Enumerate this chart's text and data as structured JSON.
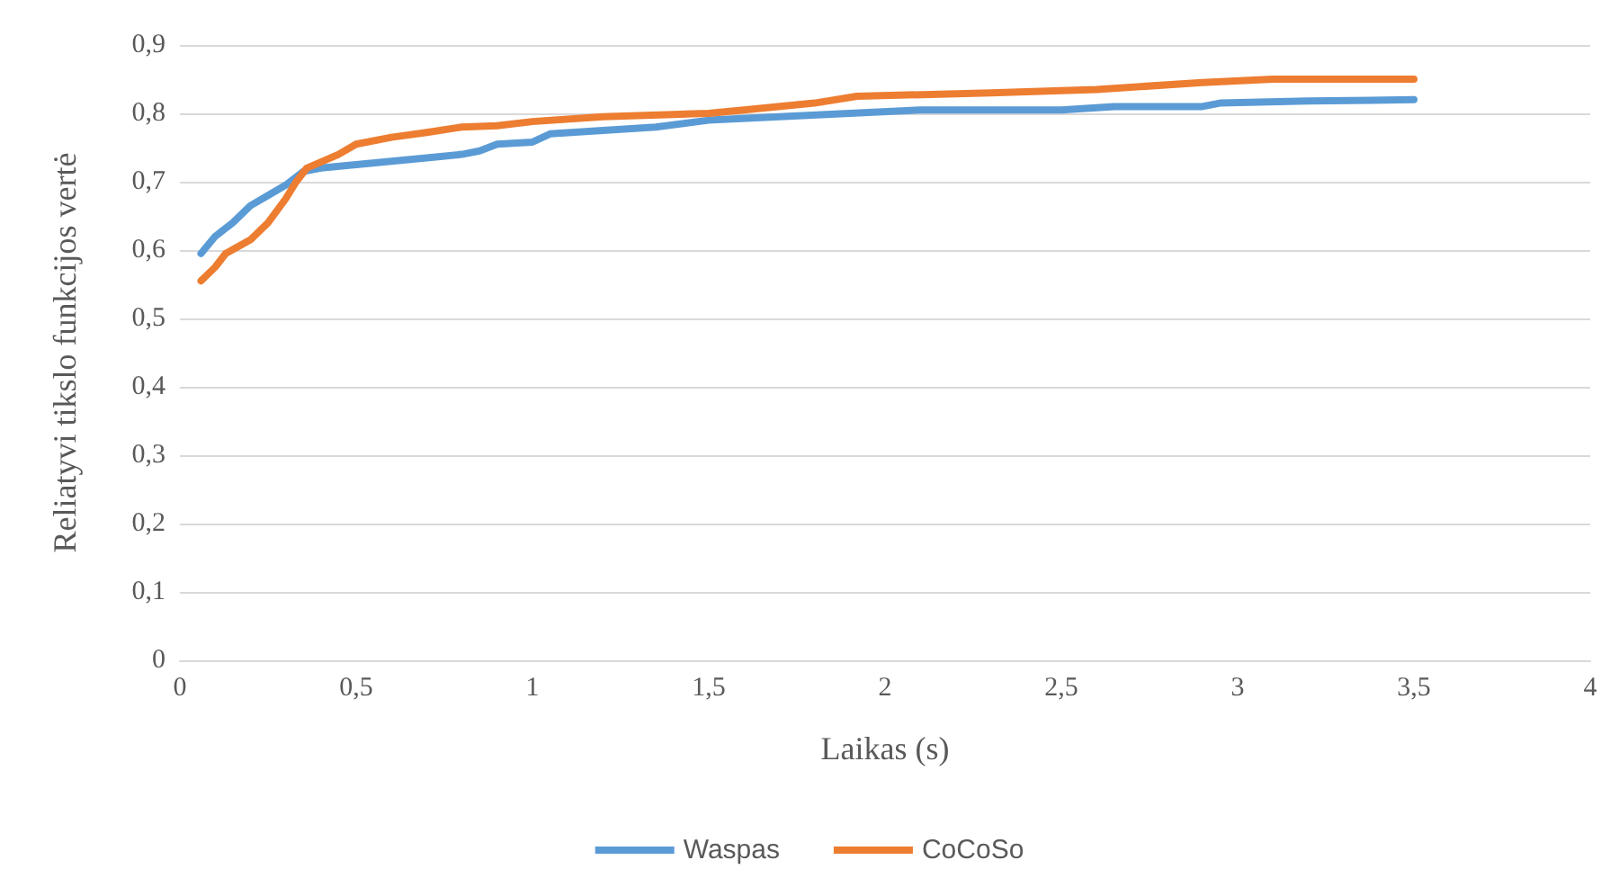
{
  "chart_data": {
    "type": "line",
    "xlabel": "Laikas (s)",
    "ylabel": "Reliatyvi tikslo funkcijos vertė",
    "xlim": [
      0,
      4
    ],
    "xticks": [
      0,
      {
        "value": 0.5,
        "label": "0,5"
      },
      1,
      {
        "value": 1.5,
        "label": "1,5"
      },
      2,
      {
        "value": 2.5,
        "label": "2,5"
      },
      3,
      {
        "value": 3.5,
        "label": "3,5"
      },
      4
    ],
    "ylim": [
      0,
      0.9
    ],
    "yticks": [
      0,
      {
        "value": 0.1,
        "label": "0,1"
      },
      {
        "value": 0.2,
        "label": "0,2"
      },
      {
        "value": 0.3,
        "label": "0,3"
      },
      {
        "value": 0.4,
        "label": "0,4"
      },
      {
        "value": 0.5,
        "label": "0,5"
      },
      {
        "value": 0.6,
        "label": "0,6"
      },
      {
        "value": 0.7,
        "label": "0,7"
      },
      {
        "value": 0.8,
        "label": "0,8"
      },
      {
        "value": 0.9,
        "label": "0,9"
      }
    ],
    "grid": "y",
    "legend": "bottom",
    "marker": "none",
    "line_style": "solid",
    "series": [
      {
        "name": "Waspas",
        "color": "#5b9bd5",
        "x": [
          0.06,
          0.1,
          0.15,
          0.2,
          0.25,
          0.3,
          0.35,
          0.4,
          0.5,
          0.6,
          0.7,
          0.8,
          0.85,
          0.9,
          1.0,
          1.05,
          1.2,
          1.35,
          1.5,
          1.7,
          1.9,
          2.1,
          2.5,
          2.65,
          2.9,
          2.95,
          3.2,
          3.5
        ],
        "values": [
          0.595,
          0.62,
          0.64,
          0.665,
          0.68,
          0.695,
          0.715,
          0.72,
          0.725,
          0.73,
          0.735,
          0.74,
          0.745,
          0.755,
          0.758,
          0.77,
          0.775,
          0.78,
          0.79,
          0.795,
          0.8,
          0.805,
          0.805,
          0.81,
          0.81,
          0.815,
          0.818,
          0.82
        ]
      },
      {
        "name": "CoCoSo",
        "color": "#ed7d31",
        "x": [
          0.06,
          0.1,
          0.13,
          0.2,
          0.25,
          0.3,
          0.33,
          0.36,
          0.45,
          0.5,
          0.6,
          0.7,
          0.8,
          0.9,
          1.0,
          1.2,
          1.5,
          1.6,
          1.8,
          1.92,
          2.3,
          2.6,
          2.9,
          3.1,
          3.5
        ],
        "values": [
          0.555,
          0.575,
          0.595,
          0.615,
          0.64,
          0.675,
          0.7,
          0.72,
          0.74,
          0.755,
          0.765,
          0.772,
          0.78,
          0.782,
          0.788,
          0.795,
          0.8,
          0.805,
          0.815,
          0.825,
          0.83,
          0.835,
          0.845,
          0.85,
          0.85
        ]
      }
    ]
  }
}
